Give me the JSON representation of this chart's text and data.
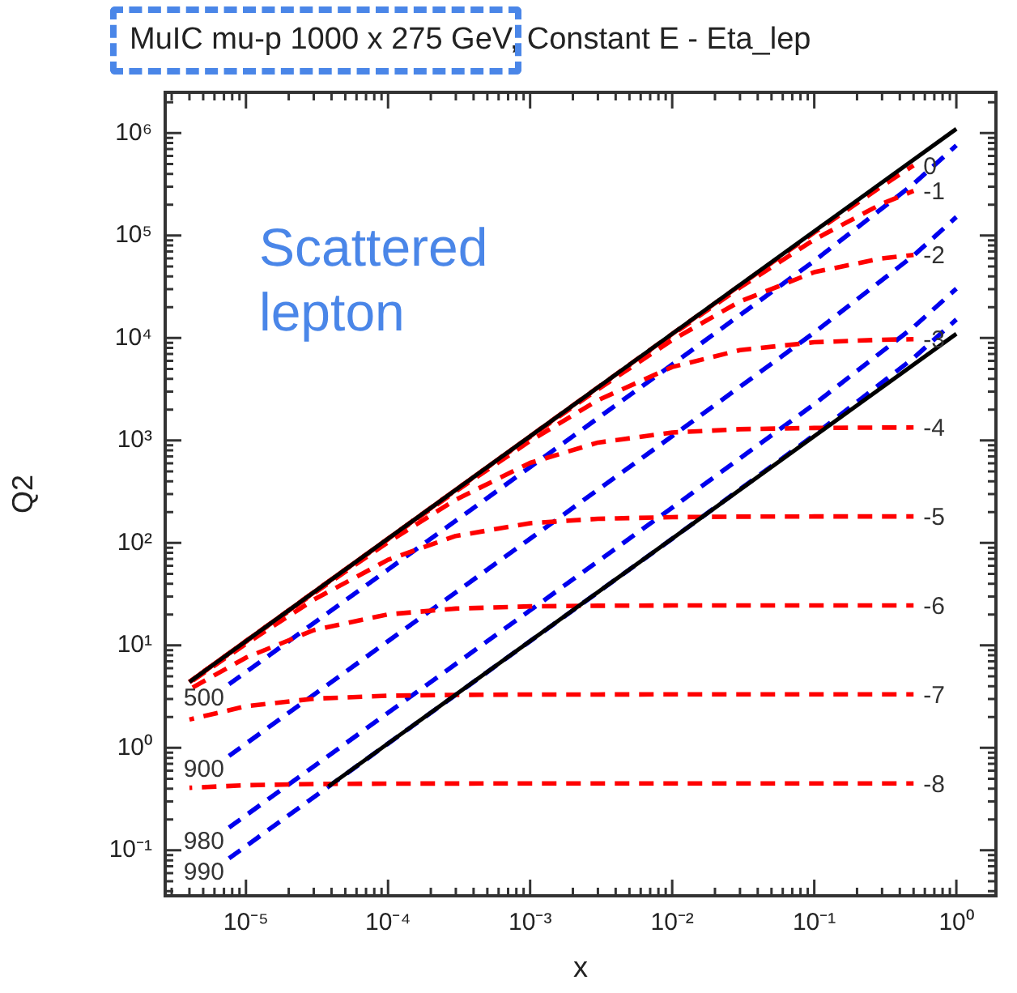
{
  "chart_data": {
    "type": "line",
    "title": "MuIC mu-p 1000 x 275 GeV,",
    "subtitle": "Constant E - Eta_lep",
    "xlabel": "x",
    "ylabel": "Q2",
    "annotations": [
      "Scattered lepton"
    ],
    "log": "xy",
    "grid": false,
    "legend": false,
    "marker": "none",
    "xlim": [
      2.7e-06,
      1.9
    ],
    "ylim": [
      0.036,
      2500000.0
    ],
    "xticks": [
      {
        "value": 1e-05,
        "label": "10⁻⁵"
      },
      {
        "value": 0.0001,
        "label": "10⁻⁴"
      },
      {
        "value": 0.001,
        "label": "10⁻³"
      },
      {
        "value": 0.01,
        "label": "10⁻²"
      },
      {
        "value": 0.1,
        "label": "10⁻¹"
      },
      {
        "value": 1,
        "label": "10⁰"
      }
    ],
    "yticks": [
      {
        "value": 0.1,
        "label": "10⁻¹"
      },
      {
        "value": 1,
        "label": "10⁰"
      },
      {
        "value": 10,
        "label": "10¹"
      },
      {
        "value": 100,
        "label": "10²"
      },
      {
        "value": 1000,
        "label": "10³"
      },
      {
        "value": 10000,
        "label": "10⁴"
      },
      {
        "value": 100000,
        "label": "10⁵"
      },
      {
        "value": 1000000,
        "label": "10⁶"
      }
    ],
    "series": [
      {
        "color": "#000000",
        "line_style": "solid",
        "x": [
          4e-06,
          1
        ],
        "values": [
          4.4,
          1100000
        ]
      },
      {
        "color": "#000000",
        "line_style": "solid",
        "x": [
          3.8e-05,
          1
        ],
        "values": [
          0.42,
          11000
        ]
      },
      {
        "name": "0",
        "color": "#ff0000",
        "line_style": "dashed",
        "x": [
          4e-06,
          1e-05,
          3e-05,
          0.0001,
          0.0003,
          0.001,
          0.003,
          0.01,
          0.03,
          0.1,
          0.3,
          0.5
        ],
        "values": [
          4.4,
          11,
          33,
          110,
          330,
          1100,
          3300,
          10970,
          32730,
          107100,
          304900,
          483500
        ]
      },
      {
        "name": "-1",
        "color": "#ff0000",
        "line_style": "dashed",
        "x": [
          4e-06,
          1e-05,
          3e-05,
          0.0001,
          0.0003,
          0.001,
          0.003,
          0.01,
          0.03,
          0.1,
          0.3,
          0.5
        ],
        "values": [
          4.4,
          11,
          33,
          110,
          330,
          1098,
          3280,
          10780,
          31100,
          91400,
          205000,
          273000
        ]
      },
      {
        "name": "-2",
        "color": "#ff0000",
        "line_style": "dashed",
        "x": [
          4e-06,
          1e-05,
          3e-05,
          0.0001,
          0.0003,
          0.001,
          0.003,
          0.01,
          0.03,
          0.1,
          0.3,
          0.5
        ],
        "values": [
          4.4,
          11,
          33,
          109.8,
          328.5,
          1084,
          3158,
          9564,
          22750,
          43970,
          59950,
          64650
        ]
      },
      {
        "name": "-3",
        "color": "#ff0000",
        "line_style": "dashed",
        "x": [
          4e-06,
          1e-05,
          3e-05,
          0.0001,
          0.0003,
          0.001,
          0.003,
          0.01,
          0.03,
          0.1,
          0.3,
          0.5
        ],
        "values": [
          4.4,
          11,
          32.9,
          108.8,
          319.4,
          990,
          2476,
          5215,
          7624,
          9095,
          9626,
          9739
        ]
      },
      {
        "name": "-4",
        "color": "#ff0000",
        "line_style": "dashed",
        "x": [
          4e-06,
          1e-05,
          3e-05,
          0.0001,
          0.0003,
          0.001,
          0.003,
          0.01,
          0.03,
          0.1,
          0.3,
          0.5
        ],
        "values": [
          4.39,
          10.9,
          32.2,
          101.7,
          264.9,
          604.5,
          954,
          1196,
          1290,
          1326,
          1337,
          1339
        ]
      },
      {
        "name": "-5",
        "color": "#ff0000",
        "line_style": "dashed",
        "x": [
          4e-06,
          1e-05,
          3e-05,
          0.0001,
          0.0003,
          0.001,
          0.003,
          0.01,
          0.03,
          0.1,
          0.3,
          0.5
        ],
        "values": [
          4.3,
          10.37,
          27.93,
          68.5,
          117.1,
          155.9,
          172.1,
          178.7,
          180.6,
          181.3,
          181.5,
          181.5
        ]
      },
      {
        "name": "-6",
        "color": "#ff0000",
        "line_style": "dashed",
        "x": [
          4e-06,
          1e-05,
          3e-05,
          0.0001,
          0.0003,
          0.001,
          0.003,
          0.01,
          0.03,
          0.1,
          0.3,
          0.5
        ],
        "values": [
          3.73,
          7.6,
          14.09,
          20.09,
          22.88,
          24.04,
          24.4,
          24.53,
          24.56,
          24.57,
          24.58,
          24.58
        ]
      },
      {
        "name": "-7",
        "color": "#ff0000",
        "line_style": "dashed",
        "x": [
          4e-06,
          1e-05,
          3e-05,
          0.0001,
          0.0003,
          0.001,
          0.003,
          0.01,
          0.1,
          0.5
        ],
        "values": [
          1.89,
          2.55,
          3.02,
          3.23,
          3.29,
          3.32,
          3.32,
          3.33,
          3.33,
          3.33
        ]
      },
      {
        "name": "-8",
        "color": "#ff0000",
        "line_style": "dashed",
        "x": [
          4e-06,
          1e-05,
          3e-05,
          0.0001,
          0.0003,
          0.001,
          0.01,
          0.1,
          0.5
        ],
        "values": [
          0.408,
          0.432,
          0.444,
          0.448,
          0.449,
          0.45,
          0.45,
          0.45,
          0.45
        ]
      },
      {
        "name": "500",
        "color": "#0000ee",
        "line_style": "dashed",
        "x": [
          7.6e-06,
          0.0001,
          0.001,
          0.01,
          0.1,
          0.5,
          1
        ],
        "values": [
          4.18,
          55,
          550,
          5515,
          56600,
          319000,
          759000
        ]
      },
      {
        "name": "900",
        "color": "#0000ee",
        "line_style": "dashed",
        "x": [
          7.6e-06,
          0.0001,
          0.001,
          0.01,
          0.1,
          0.5,
          1
        ],
        "values": [
          0.836,
          11,
          110,
          1103,
          11310,
          63800,
          151700
        ]
      },
      {
        "name": "980",
        "color": "#0000ee",
        "line_style": "dashed",
        "x": [
          7.6e-06,
          0.0001,
          0.001,
          0.01,
          0.1,
          0.5,
          1
        ],
        "values": [
          0.167,
          2.2,
          22,
          221,
          2262,
          12800,
          30300
        ]
      },
      {
        "name": "990",
        "color": "#0000ee",
        "line_style": "dashed",
        "x": [
          7.6e-06,
          0.0001,
          0.001,
          0.01,
          0.1,
          0.5,
          1
        ],
        "values": [
          0.0836,
          1.1,
          11,
          110,
          1131,
          6380,
          15170
        ]
      }
    ]
  }
}
